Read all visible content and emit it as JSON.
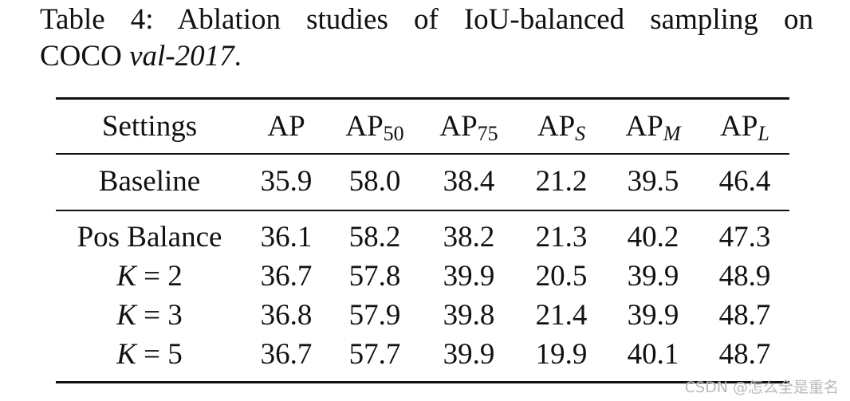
{
  "caption": {
    "line1": "Table 4:  Ablation studies of IoU-balanced sampling on",
    "line2_plain": "COCO ",
    "line2_italic": "val-2017",
    "line2_end": "."
  },
  "table": {
    "headers": [
      {
        "base": "Settings",
        "sub": ""
      },
      {
        "base": "AP",
        "sub": ""
      },
      {
        "base": "AP",
        "sub": "50"
      },
      {
        "base": "AP",
        "sub": "75"
      },
      {
        "base": "AP",
        "sub": "S"
      },
      {
        "base": "AP",
        "sub": "M"
      },
      {
        "base": "AP",
        "sub": "L"
      }
    ],
    "rows": [
      {
        "setting": "Baseline",
        "values": [
          "35.9",
          "58.0",
          "38.4",
          "21.2",
          "39.5",
          "46.4"
        ]
      },
      {
        "setting": "Pos Balance",
        "values": [
          "36.1",
          "58.2",
          "38.2",
          "21.3",
          "40.2",
          "47.3"
        ]
      },
      {
        "setting": "K = 2",
        "setting_var": "K",
        "setting_rest": " = 2",
        "values": [
          "36.7",
          "57.8",
          "39.9",
          "20.5",
          "39.9",
          "48.9"
        ]
      },
      {
        "setting": "K = 3",
        "setting_var": "K",
        "setting_rest": " = 3",
        "values": [
          "36.8",
          "57.9",
          "39.8",
          "21.4",
          "39.9",
          "48.7"
        ]
      },
      {
        "setting": "K = 5",
        "setting_var": "K",
        "setting_rest": " = 5",
        "values": [
          "36.7",
          "57.7",
          "39.9",
          "19.9",
          "40.1",
          "48.7"
        ]
      }
    ]
  },
  "watermark": "CSDN @怎么全是重名"
}
